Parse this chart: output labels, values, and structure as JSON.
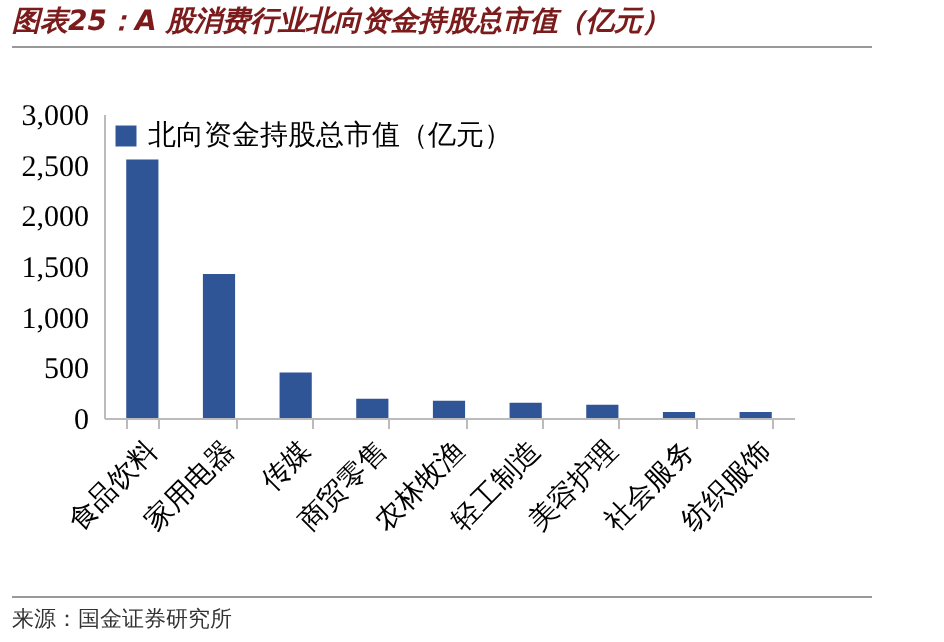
{
  "chart_data": {
    "type": "bar",
    "title": "图表25：A 股消费行业北向资金持股总市值（亿元）",
    "categories": [
      "食品饮料",
      "家用电器",
      "传媒",
      "商贸零售",
      "农林牧渔",
      "轻工制造",
      "美容护理",
      "社会服务",
      "纺织服饰"
    ],
    "series": [
      {
        "name": "北向资金持股总市值（亿元）",
        "color": "#2f5597",
        "values": [
          2550,
          1420,
          450,
          190,
          170,
          150,
          130,
          60,
          60
        ]
      }
    ],
    "ylim": [
      0,
      3000
    ],
    "yticks": [
      0,
      {
        "value": 500,
        "label": "500"
      },
      {
        "value": 1000,
        "label": "1,000"
      },
      {
        "value": 1500,
        "label": "1,500"
      },
      {
        "value": 2000,
        "label": "2,000"
      },
      {
        "value": 2500,
        "label": "2,500"
      },
      {
        "value": 3000,
        "label": "3,000"
      }
    ],
    "grid": false,
    "legend": "top left",
    "annotations": [
      "来源：国金证券研究所"
    ]
  }
}
